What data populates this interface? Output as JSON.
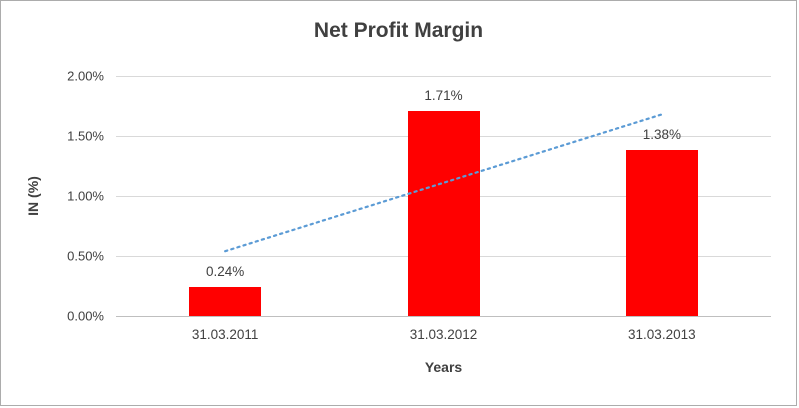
{
  "chart_data": {
    "type": "bar",
    "title": "Net Profit Margin",
    "categories": [
      "31.03.2011",
      "31.03.2012",
      "31.03.2013"
    ],
    "values": [
      0.24,
      1.71,
      1.38
    ],
    "data_labels": [
      "0.24%",
      "1.71%",
      "1.38%"
    ],
    "xlabel": "Years",
    "ylabel": "IN (%)",
    "ylim": [
      0,
      2.0
    ],
    "ytick_step": 0.5,
    "ytick_labels": [
      "0.00%",
      "0.50%",
      "1.00%",
      "1.50%",
      "2.00%"
    ],
    "grid": true,
    "legend": "none",
    "bar_color": "#FF0000",
    "grid_color": "#D9D9D9",
    "axis_line_color": "#BFBFBF",
    "text_color": "#404040",
    "trendline": {
      "style": "dotted",
      "color": "#5B9BD5",
      "start_value": 0.54,
      "end_value": 1.68
    }
  }
}
